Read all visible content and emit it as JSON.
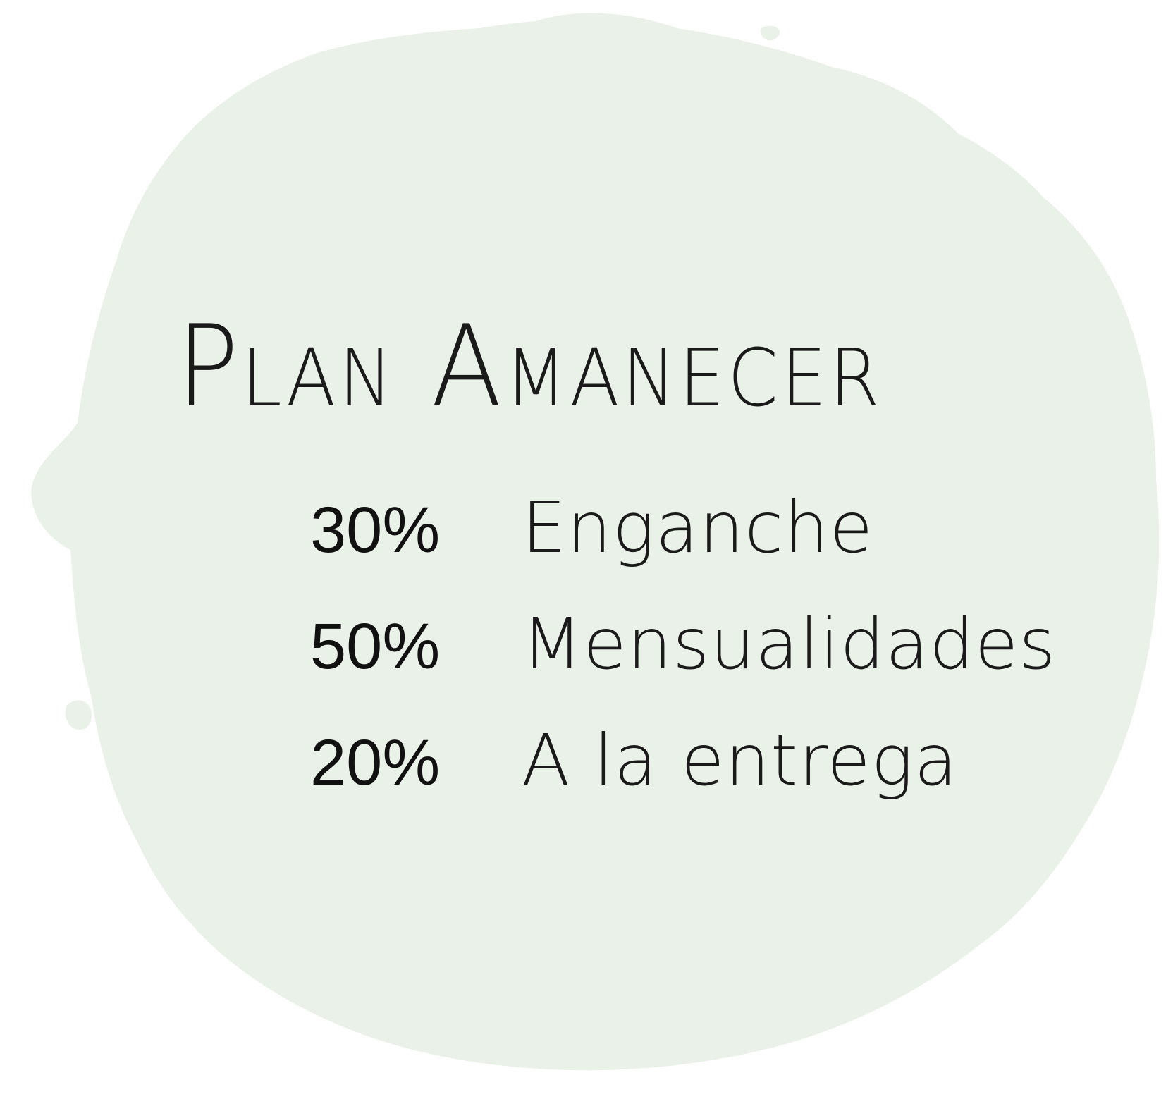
{
  "colors": {
    "background": "#ffffff",
    "blob": "#eaf1e8",
    "text": "#1a1a1a"
  },
  "title": "Plan Amanecer",
  "plan": [
    {
      "percent": "30%",
      "label": "Enganche"
    },
    {
      "percent": "50%",
      "label": "Mensualidades"
    },
    {
      "percent": "20%",
      "label": "A la entrega"
    }
  ]
}
